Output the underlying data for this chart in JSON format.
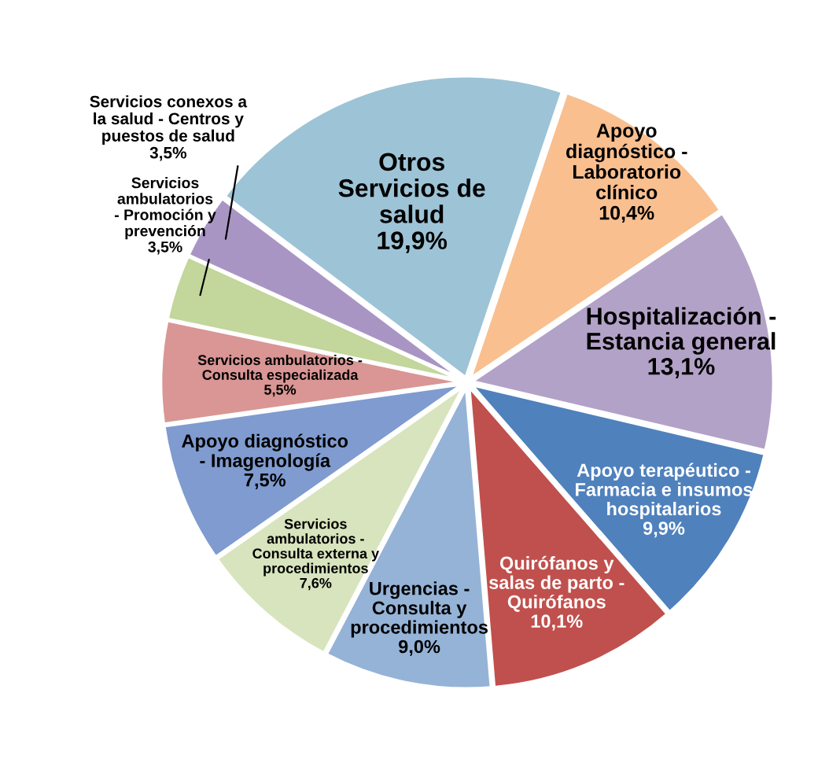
{
  "chart_data": {
    "type": "pie",
    "categories": [
      "Otros\nServicios de\nsalud",
      "Apoyo\ndiagnóstico -\nLaboratorio\nclínico",
      "Hospitalización -\nEstancia general",
      "Apoyo terapéutico -\nFarmacia e insumos\nhospitalarios",
      "Quirófanos y\nsalas de parto -\nQuirófanos",
      "Urgencias -\nConsulta y\nprocedimientos",
      "Servicios\nambulatorios -\nConsulta externa y\nprocedimientos",
      "Apoyo diagnóstico\n- Imagenología",
      "Servicios ambulatorios -\nConsulta especializada",
      "Servicios\nambulatorios\n- Promoción y\nprevención",
      "Servicios conexos a\nla salud - Centros y\npuestos de salud"
    ],
    "values": [
      19.9,
      10.4,
      13.1,
      9.9,
      10.1,
      9.0,
      7.6,
      7.5,
      5.5,
      3.5,
      3.5
    ],
    "value_labels": [
      "19,9%",
      "10,4%",
      "13,1%",
      "9,9%",
      "10,1%",
      "9,0%",
      "7,6%",
      "7,5%",
      "5,5%",
      "3,5%",
      "3,5%"
    ],
    "colors": [
      "#9dc3d6",
      "#f9bf8f",
      "#b3a2c7",
      "#4f81bd",
      "#c0504d",
      "#95b3d7",
      "#d7e4bd",
      "#7f9bcf",
      "#d99694",
      "#c3d69b",
      "#a995c4"
    ]
  }
}
